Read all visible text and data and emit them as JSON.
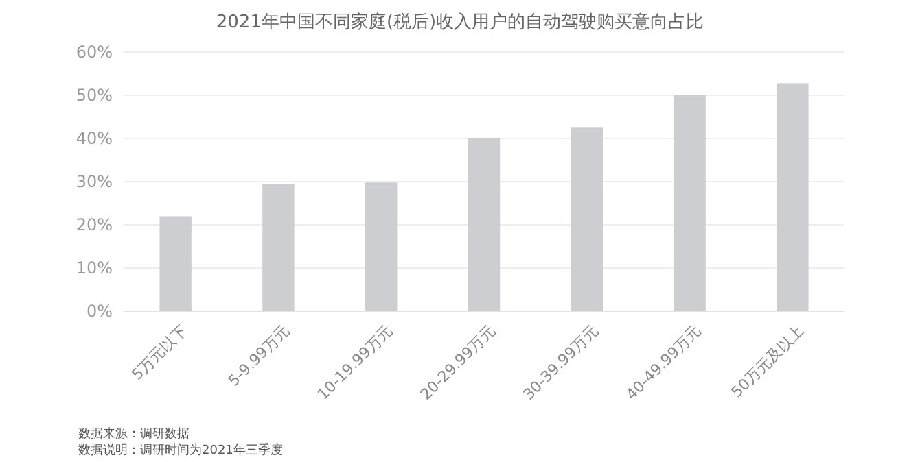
{
  "chart_data": {
    "type": "bar",
    "title": "2021年中国不同家庭(税后)收入用户的自动驾驶购买意向占比",
    "categories": [
      "5万元以下",
      "5-9.99万元",
      "10-19.99万元",
      "20-29.99万元",
      "30-39.99万元",
      "40-49.99万元",
      "50万元及以上"
    ],
    "values": [
      22,
      29.5,
      29.8,
      40,
      42.5,
      50,
      52.8
    ],
    "color": "#ccced1",
    "ylim": [
      0,
      60
    ],
    "yticks": [
      {
        "value": 0,
        "label": "0%"
      },
      {
        "value": 10,
        "label": "10%"
      },
      {
        "value": 20,
        "label": "20%"
      },
      {
        "value": 30,
        "label": "30%"
      },
      {
        "value": 40,
        "label": "40%"
      },
      {
        "value": 50,
        "label": "50%"
      },
      {
        "value": 60,
        "label": "60%"
      }
    ],
    "grid": "y",
    "annotations": [
      "数据来源：调研数据",
      "数据说明：调研时间为2021年三季度"
    ]
  }
}
